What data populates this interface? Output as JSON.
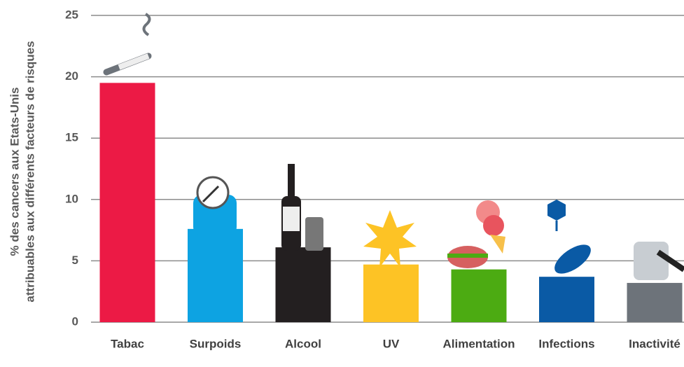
{
  "chart_data": {
    "type": "bar",
    "ylabel": [
      "% des cancers aux Etats-Unis",
      "attribuables aux différents facteurs de risques"
    ],
    "categories": [
      "Tabac",
      "Surpoids",
      "Alcool",
      "UV",
      "Alimentation",
      "Infections",
      "Inactivité"
    ],
    "values": [
      19.5,
      7.6,
      6.1,
      4.7,
      4.3,
      3.7,
      3.2
    ],
    "colors": [
      "#ec1a45",
      "#0da3e2",
      "#231f20",
      "#fdc325",
      "#4cab12",
      "#0a5aa5",
      "#6d737a"
    ],
    "ylim": [
      0,
      25
    ],
    "yticks": [
      0,
      5,
      10,
      15,
      20,
      25
    ],
    "grid": true
  }
}
